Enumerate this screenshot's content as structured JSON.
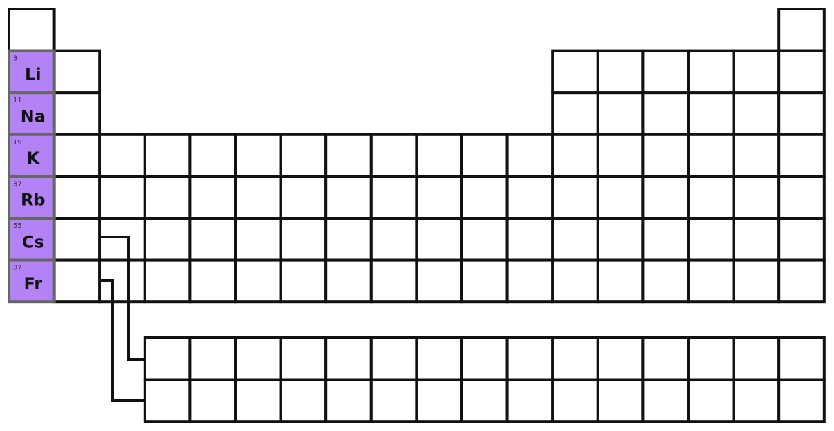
{
  "colors": {
    "highlight": "#b383f5",
    "highlight_border": "#666666",
    "grid_line": "#111111",
    "background": "#ffffff"
  },
  "table": {
    "periods": 7,
    "groups": 18,
    "f_block_rows": 2,
    "f_block_columns": 15,
    "highlighted_group": 1,
    "elements": [
      {
        "number": "3",
        "symbol": "Li",
        "period": 2,
        "group": 1
      },
      {
        "number": "11",
        "symbol": "Na",
        "period": 3,
        "group": 1
      },
      {
        "number": "19",
        "symbol": "K",
        "period": 4,
        "group": 1
      },
      {
        "number": "37",
        "symbol": "Rb",
        "period": 5,
        "group": 1
      },
      {
        "number": "55",
        "symbol": "Cs",
        "period": 6,
        "group": 1
      },
      {
        "number": "87",
        "symbol": "Fr",
        "period": 7,
        "group": 1
      }
    ]
  }
}
